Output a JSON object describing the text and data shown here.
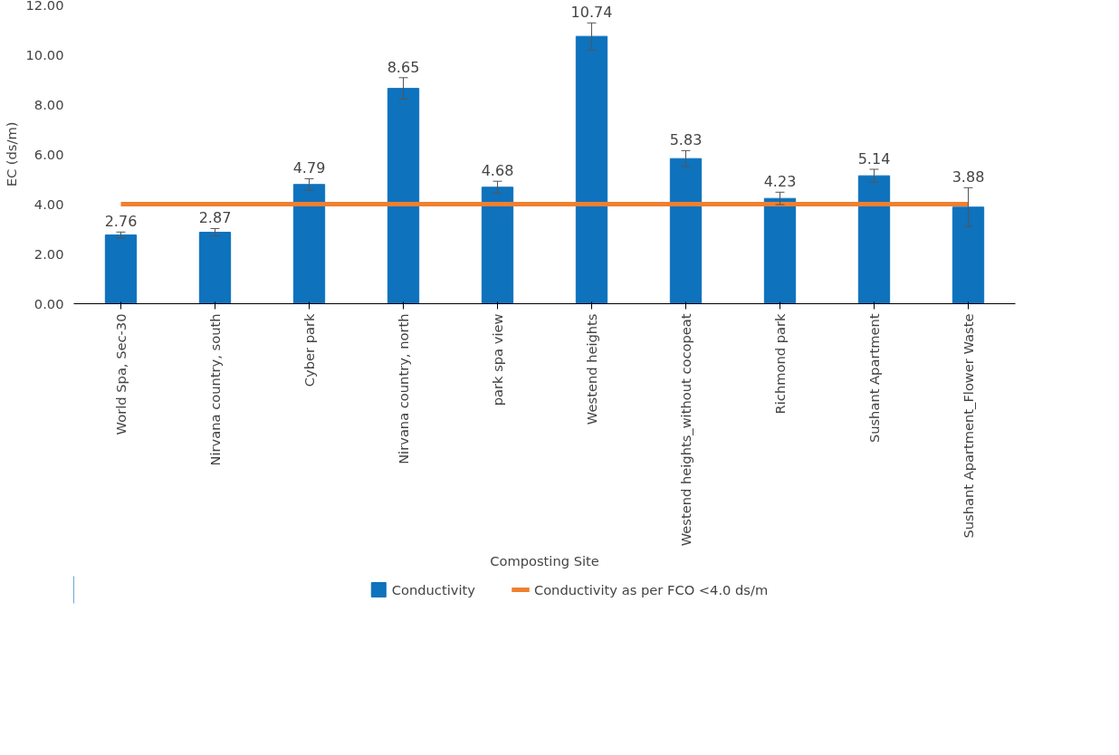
{
  "chart_data": {
    "type": "bar",
    "xlabel": "Composting Site",
    "ylabel": "EC (ds/m)",
    "categories": [
      "World Spa, Sec-30",
      "Nirvana country, south",
      "Cyber park",
      "Nirvana country, north",
      "park spa view",
      "Westend heights",
      "Westend heights_without cocopeat",
      "Richmond park",
      "Sushant Apartment",
      "Sushant Apartment_Flower Waste"
    ],
    "series": [
      {
        "name": "Conductivity",
        "color": "#0e72bd",
        "values": [
          2.76,
          2.87,
          4.79,
          8.65,
          4.68,
          10.74,
          5.83,
          4.23,
          5.14,
          3.88
        ],
        "errors": [
          0.12,
          0.15,
          0.23,
          0.43,
          0.24,
          0.54,
          0.32,
          0.25,
          0.26,
          0.78
        ],
        "data_labels": true
      },
      {
        "name": "Conductivity as per FCO <4.0 ds/m",
        "type": "line",
        "color": "#f07f2f",
        "values": [
          4.0,
          4.0,
          4.0,
          4.0,
          4.0,
          4.0,
          4.0,
          4.0,
          4.0,
          4.0
        ],
        "marker": "none"
      }
    ],
    "ylim": [
      0,
      12
    ],
    "yticks": [
      {
        "value": 0,
        "label": "0.00"
      },
      {
        "value": 2,
        "label": "2.00"
      },
      {
        "value": 4,
        "label": "4.00"
      },
      {
        "value": 6,
        "label": "6.00"
      },
      {
        "value": 8,
        "label": "8.00"
      },
      {
        "value": 10,
        "label": "10.00"
      },
      {
        "value": 12,
        "label": "12.00"
      }
    ],
    "grid": false,
    "legend": "bottom"
  }
}
